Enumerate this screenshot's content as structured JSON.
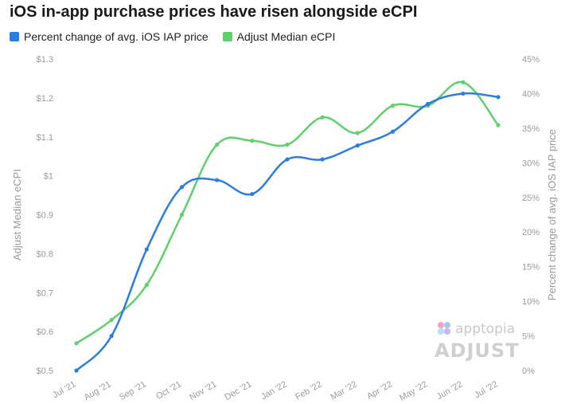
{
  "chart_data": {
    "type": "line",
    "title": "iOS in-app purchase prices have risen alongside eCPI",
    "categories": [
      "Jul '21",
      "Aug '21",
      "Sep '21",
      "Oct '21",
      "Nov '21",
      "Dec '21",
      "Jan '22",
      "Feb '22",
      "Mar '22",
      "Apr '22",
      "May '22",
      "Jun '22",
      "Jul '22"
    ],
    "series": [
      {
        "name": "Percent change of avg. iOS IAP price",
        "axis": "right",
        "color": "#2b7de0",
        "values": [
          0,
          5,
          17.5,
          26.5,
          27.5,
          25.5,
          30.5,
          30.5,
          32.5,
          34.5,
          38.5,
          40,
          39.5
        ]
      },
      {
        "name": "Adjust Median eCPI",
        "axis": "left",
        "color": "#5fd06c",
        "values": [
          0.57,
          0.63,
          0.72,
          0.9,
          1.08,
          1.09,
          1.08,
          1.15,
          1.11,
          1.18,
          1.18,
          1.24,
          1.13
        ]
      }
    ],
    "y_left": {
      "label": "Adjust Median eCPI",
      "ylim": [
        0.5,
        1.3
      ],
      "ticks": [
        "$0.5",
        "$0.6",
        "$0.7",
        "$0.8",
        "$0.9",
        "$1",
        "$1.1",
        "$1.2",
        "$1.3"
      ]
    },
    "y_right": {
      "label": "Percent change of avg. iOS IAP price",
      "ylim": [
        0,
        45
      ],
      "ticks": [
        "0%",
        "5%",
        "10%",
        "15%",
        "20%",
        "25%",
        "30%",
        "35%",
        "40%",
        "45%"
      ]
    },
    "grid": false,
    "legend_position": "top-left"
  },
  "watermark": {
    "apptopia": "apptopia",
    "adjust": "ADJUST"
  }
}
